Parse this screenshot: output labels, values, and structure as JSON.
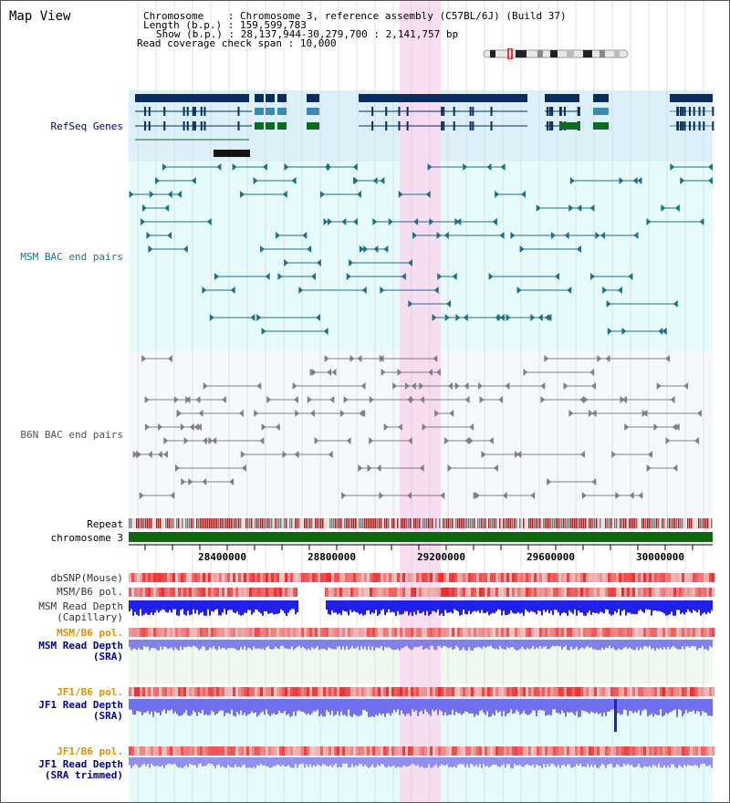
{
  "view_title": "Map View",
  "info": {
    "chromosome_label": "Chromosome",
    "chromosome_value": "Chromosome 3, reference assembly (C57BL/6J) (Build 37)",
    "length_label": "Length (b.p.)",
    "length_value": "159,599,783",
    "show_label": "Show (b.p.)",
    "show_value": "28,137,944-30,279,700 : 2,141,757 bp",
    "coverage_label": "Read coverage check span",
    "coverage_value": "10,000"
  },
  "colors": {
    "refseq_bg": "#dcf0fa",
    "msm_bg": "#e6fbfb",
    "b6n_bg": "#f6f8fb",
    "highlight": "#f8d8f0",
    "gene_dark": "#0a2d5e",
    "gene_mid": "#3a8ab5",
    "gene_green": "#0b6b1e",
    "msm_pair": "#1e6f8a",
    "b6n_pair": "#808080",
    "chrom_bar": "#0b6b0b",
    "snp_red": "#f04848",
    "depth_blue": "#2020ee",
    "depth_violet": "#7070f0"
  },
  "tracks": {
    "refseq": "RefSeq Genes",
    "msm_bac": "MSM BAC end pairs",
    "b6n_bac": "B6N BAC end pairs",
    "repeat": "Repeat",
    "chromosome": "chromosome 3",
    "dbsnp": "dbSNP(Mouse)",
    "msm_b6_pol_1": "MSM/B6 pol.",
    "msm_depth_cap_1": "MSM Read Depth",
    "msm_depth_cap_2": "(Capillary)",
    "msm_b6_pol_2": "MSM/B6 pol.",
    "msm_depth_sra_1": "MSM Read Depth",
    "msm_depth_sra_2": "(SRA)",
    "jf1_pol_1": "JF1/B6 pol.",
    "jf1_depth_1": "JF1 Read Depth",
    "jf1_depth_2": "(SRA)",
    "jf1_pol_2": "JF1/B6 pol.",
    "jf1_trim_1": "JF1 Read Depth",
    "jf1_trim_2": "(SRA trimmed)"
  },
  "axis": {
    "tick_labels": [
      "28400000",
      "28800000",
      "29200000",
      "29600000",
      "30000000"
    ]
  }
}
